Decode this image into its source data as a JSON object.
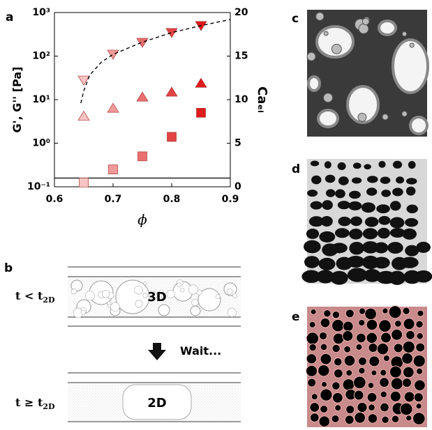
{
  "panel_labels": [
    "a",
    "b",
    "c",
    "d",
    "e"
  ],
  "chart_data": {
    "type": "scatter",
    "xlabel": "ϕ",
    "ylabel": "G', G'' [Pa]",
    "y2label": "Caₑₗ",
    "xlim": [
      0.6,
      0.9
    ],
    "xticks": [
      0.6,
      0.7,
      0.8,
      0.9
    ],
    "ylim": [
      0.1,
      1000
    ],
    "ylog": true,
    "yticks": [
      {
        "value": 0.1,
        "label": "10⁻¹"
      },
      {
        "value": 1,
        "label": "10⁰"
      },
      {
        "value": 10,
        "label": "10¹"
      },
      {
        "value": 100,
        "label": "10²"
      },
      {
        "value": 1000,
        "label": "10³"
      }
    ],
    "y2lim": [
      0,
      20
    ],
    "y2ticks": [
      0,
      5,
      10,
      15,
      20
    ],
    "hline": {
      "value": 1,
      "axis": "y2",
      "color": "#000000"
    },
    "series": [
      {
        "marker": "triangle-down",
        "x": [
          0.65,
          0.7,
          0.75,
          0.8,
          0.85
        ],
        "values": [
          28,
          110,
          205,
          345,
          500
        ],
        "colors": [
          "#f6c4c4",
          "#f29a9a",
          "#ea6f6f",
          "#e24444",
          "#dd1c1c"
        ]
      },
      {
        "marker": "triangle-up",
        "x": [
          0.65,
          0.7,
          0.75,
          0.8,
          0.85
        ],
        "values": [
          4.2,
          6.4,
          11.5,
          15,
          24
        ],
        "colors": [
          "#f6c4c4",
          "#f29a9a",
          "#ea6f6f",
          "#e24444",
          "#dd1c1c"
        ]
      },
      {
        "marker": "square",
        "x": [
          0.65,
          0.7,
          0.75,
          0.8,
          0.85
        ],
        "values": [
          0.125,
          0.25,
          0.5,
          1.4,
          5
        ],
        "colors": [
          "#f6c4c4",
          "#f29a9a",
          "#ea6f6f",
          "#e24444",
          "#dd1c1c"
        ]
      },
      {
        "marker": "none",
        "dash": true,
        "axis": "y2",
        "color": "#000000",
        "x": [
          0.645,
          0.65,
          0.66,
          0.68,
          0.7,
          0.75,
          0.8,
          0.85,
          0.9
        ],
        "values": [
          9.6,
          11,
          12.8,
          14.3,
          15.2,
          16.6,
          17.7,
          18.5,
          19.2
        ]
      }
    ]
  },
  "diagram": {
    "label_3d": "3D",
    "label_2d": "2D",
    "wait": "Wait...",
    "before": {
      "main": "t < t",
      "sub": "2D"
    },
    "after": {
      "main": "t ≥ t",
      "sub": "2D"
    }
  }
}
